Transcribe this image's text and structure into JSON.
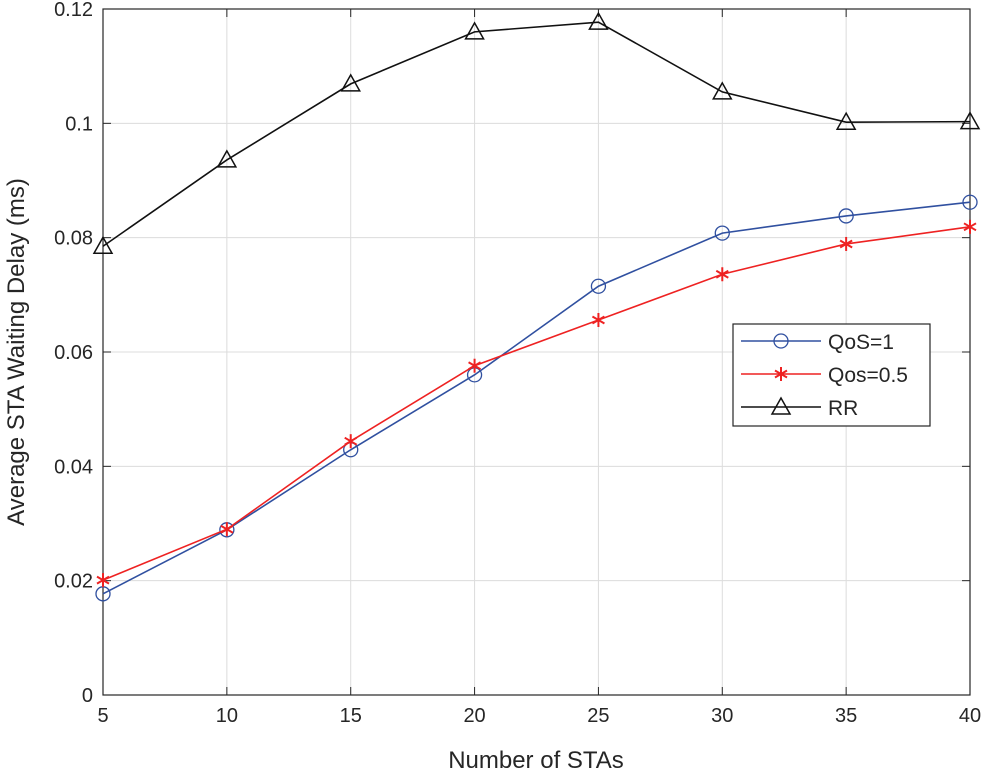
{
  "chart_data": {
    "type": "line",
    "title": "",
    "xlabel": "Number of STAs",
    "ylabel": "Average STA Waiting Delay (ms)",
    "x": [
      5,
      10,
      15,
      20,
      25,
      30,
      35,
      40
    ],
    "xlim": [
      5,
      40
    ],
    "ylim": [
      0,
      0.12
    ],
    "xticks": [
      "5",
      "10",
      "15",
      "20",
      "25",
      "30",
      "35",
      "40"
    ],
    "yticks": [
      "0",
      "0.02",
      "0.04",
      "0.06",
      "0.08",
      "0.1",
      "0.12"
    ],
    "grid": true,
    "legend_position": "right",
    "series": [
      {
        "name": "QoS=1",
        "color": "#3050a0",
        "marker": "circle",
        "values": [
          0.0177,
          0.0289,
          0.0429,
          0.056,
          0.0715,
          0.0808,
          0.0838,
          0.0862
        ]
      },
      {
        "name": "Qos=0.5",
        "color": "#ee2222",
        "marker": "asterisk",
        "values": [
          0.0201,
          0.029,
          0.0444,
          0.0576,
          0.0656,
          0.0736,
          0.0789,
          0.0819
        ]
      },
      {
        "name": "RR",
        "color": "#111111",
        "marker": "triangle",
        "values": [
          0.0785,
          0.0936,
          0.1069,
          0.116,
          0.1177,
          0.1055,
          0.1002,
          0.1003
        ]
      }
    ]
  }
}
